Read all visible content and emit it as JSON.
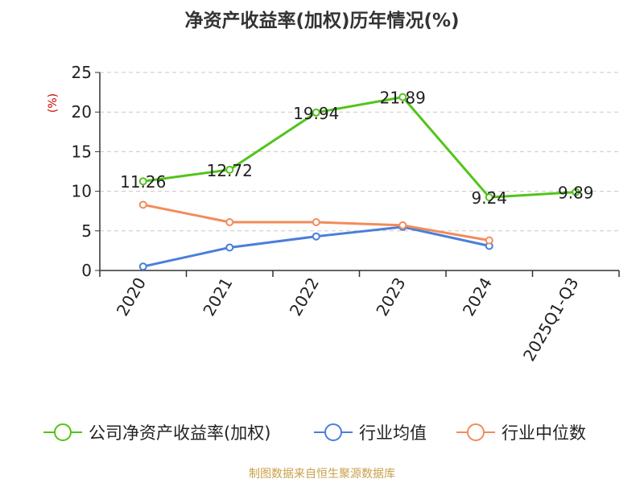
{
  "chart_data": {
    "type": "line",
    "title": "净资产收益率(加权)历年情况(%)",
    "ylabel": "(%)",
    "xlabel": "",
    "ylim": [
      0,
      25
    ],
    "yticks": [
      0,
      5,
      10,
      15,
      20,
      25
    ],
    "grid": true,
    "legend_position": "bottom",
    "categories": [
      "2020",
      "2021",
      "2022",
      "2023",
      "2024",
      "2025Q1-Q3"
    ],
    "series": [
      {
        "name": "公司净资产收益率(加权)",
        "color": "#52c41a",
        "values": [
          11.26,
          12.72,
          19.94,
          21.89,
          9.24,
          9.89
        ],
        "labels": [
          "11.26",
          "12.72",
          "19.94",
          "21.89",
          "9.24",
          "9.89"
        ]
      },
      {
        "name": "行业均值",
        "color": "#4a7fdb",
        "values": [
          0.5,
          2.9,
          4.3,
          5.5,
          3.1,
          null
        ]
      },
      {
        "name": "行业中位数",
        "color": "#f28c5b",
        "values": [
          8.3,
          6.1,
          6.1,
          5.7,
          3.8,
          null
        ]
      }
    ],
    "source": "制图数据来自恒生聚源数据库"
  }
}
